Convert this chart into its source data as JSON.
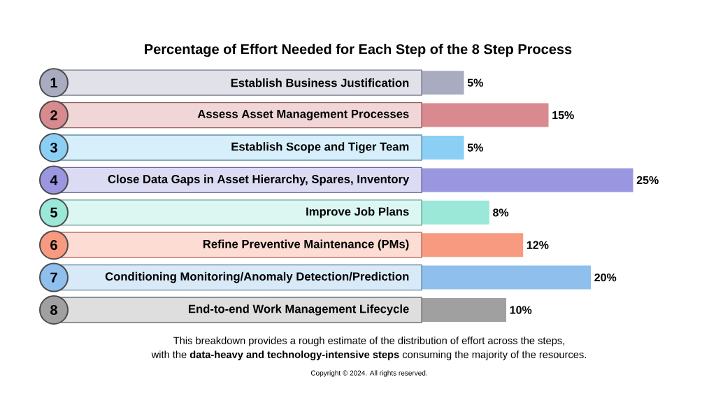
{
  "chart_data": {
    "type": "bar",
    "orientation": "horizontal",
    "title": "Percentage of Effort Needed for Each Step of the 8 Step Process",
    "categories": [
      "Establish Business Justification",
      "Assess Asset Management Processes",
      "Establish Scope and Tiger Team",
      "Close Data Gaps in Asset Hierarchy, Spares, Inventory",
      "Improve Job Plans",
      "Refine Preventive Maintenance (PMs)",
      "Conditioning Monitoring/Anomaly Detection/Prediction",
      "End-to-end Work Management Lifecycle"
    ],
    "values": [
      5,
      15,
      5,
      25,
      8,
      12,
      20,
      10
    ],
    "value_labels": [
      "5%",
      "15%",
      "5%",
      "25%",
      "8%",
      "12%",
      "20%",
      "10%"
    ],
    "colors": [
      "#a9abc0",
      "#d88a8e",
      "#8ccff5",
      "#9a97e0",
      "#9be8d8",
      "#f79a80",
      "#8fbfec",
      "#a0a0a0"
    ],
    "annotations": [
      "This breakdown provides a rough estimate of the distribution of effort across the steps,",
      "with the **data-heavy and technology-intensive steps** consuming the majority of the resources.",
      "Copyright © 2024. All rights reserved.",
      "1",
      "2",
      "3",
      "4",
      "5",
      "6",
      "7",
      "8"
    ],
    "data_labels": false
  }
}
